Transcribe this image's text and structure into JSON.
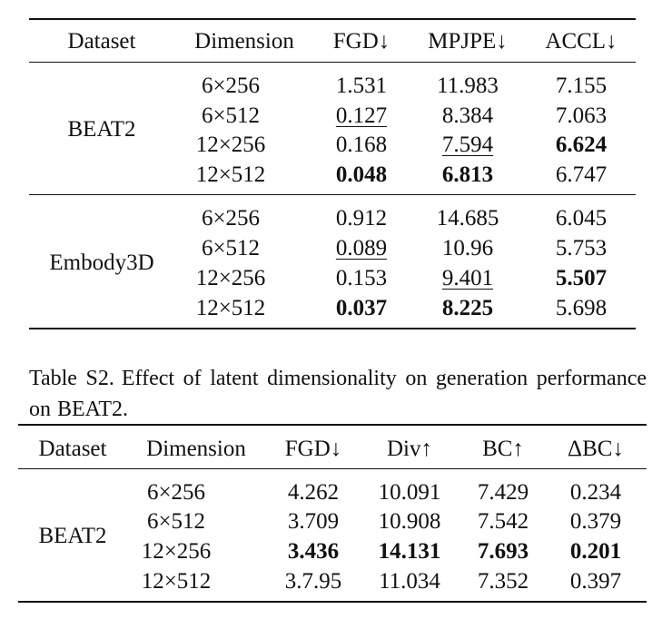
{
  "table1": {
    "headers": [
      "Dataset",
      "Dimension",
      "FGD↓",
      "MPJPE↓",
      "ACCL↓"
    ],
    "groups": [
      {
        "dataset": "BEAT2",
        "rows": [
          [
            "6×256",
            "1.531",
            "11.983",
            "7.155"
          ],
          [
            "6×512",
            "0.127",
            "8.384",
            "7.063"
          ],
          [
            "12×256",
            "0.168",
            "7.594",
            "6.624"
          ],
          [
            "12×512",
            "0.048",
            "6.813",
            "6.747"
          ]
        ]
      },
      {
        "dataset": "Embody3D",
        "rows": [
          [
            "6×256",
            "0.912",
            "14.685",
            "6.045"
          ],
          [
            "6×512",
            "0.089",
            "10.96",
            "5.753"
          ],
          [
            "12×256",
            "0.153",
            "9.401",
            "5.507"
          ],
          [
            "12×512",
            "0.037",
            "8.225",
            "5.698"
          ]
        ]
      }
    ]
  },
  "caption": {
    "label": "Table S2.",
    "text": "Effect of latent dimensionality on generation performance on BEAT2."
  },
  "table2": {
    "headers": [
      "Dataset",
      "Dimension",
      "FGD↓",
      "Div↑",
      "BC↑",
      "ΔBC↓"
    ],
    "groups": [
      {
        "dataset": "BEAT2",
        "rows": [
          [
            "6×256",
            "4.262",
            "10.091",
            "7.429",
            "0.234"
          ],
          [
            "6×512",
            "3.709",
            "10.908",
            "7.542",
            "0.379"
          ],
          [
            "12×256",
            "3.436",
            "14.131",
            "7.693",
            "0.201"
          ],
          [
            "12×512",
            "3.7.95",
            "11.034",
            "7.352",
            "0.397"
          ]
        ]
      }
    ]
  }
}
